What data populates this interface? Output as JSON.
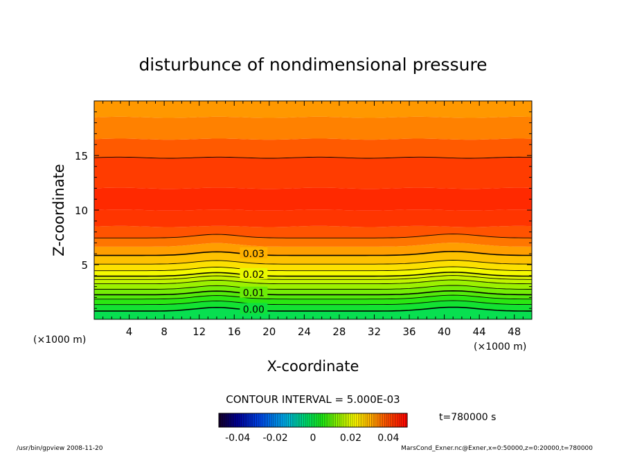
{
  "chart_data": {
    "type": "heatmap",
    "title": "disturbunce of nondimensional pressure",
    "xlabel": "X-coordinate",
    "ylabel": "Z-coordinate",
    "x_unit_left": "(×1000 m)",
    "x_unit_right": "(×1000 m)",
    "xlim": [
      0,
      50
    ],
    "ylim": [
      0,
      20
    ],
    "x_ticks": [
      4,
      8,
      12,
      16,
      20,
      24,
      28,
      32,
      36,
      40,
      44,
      48
    ],
    "y_ticks": [
      5,
      10,
      15
    ],
    "contour_labels": [
      {
        "text": "0.00",
        "x": 16.8,
        "z": 0.6
      },
      {
        "text": "0.01",
        "x": 16.8,
        "z": 2.1
      },
      {
        "text": "0.02",
        "x": 16.8,
        "z": 3.8
      },
      {
        "text": "0.03",
        "x": 16.8,
        "z": 5.7
      }
    ],
    "contour_interval_text": "CONTOUR INTERVAL = 5.000E-03",
    "colorbar": {
      "range": [
        -0.05,
        0.05
      ],
      "tick_labels": [
        "-0.04",
        "-0.02",
        "0",
        "0.02",
        "0.04"
      ],
      "tick_values": [
        -0.04,
        -0.02,
        0,
        0.02,
        0.04
      ]
    },
    "time_label": "t=780000 s",
    "footer_left": "/usr/bin/gpview   2008-11-20",
    "footer_right": "MarsCond_Exner.nc@Exner,x=0:50000,z=0:20000,t=780000"
  }
}
